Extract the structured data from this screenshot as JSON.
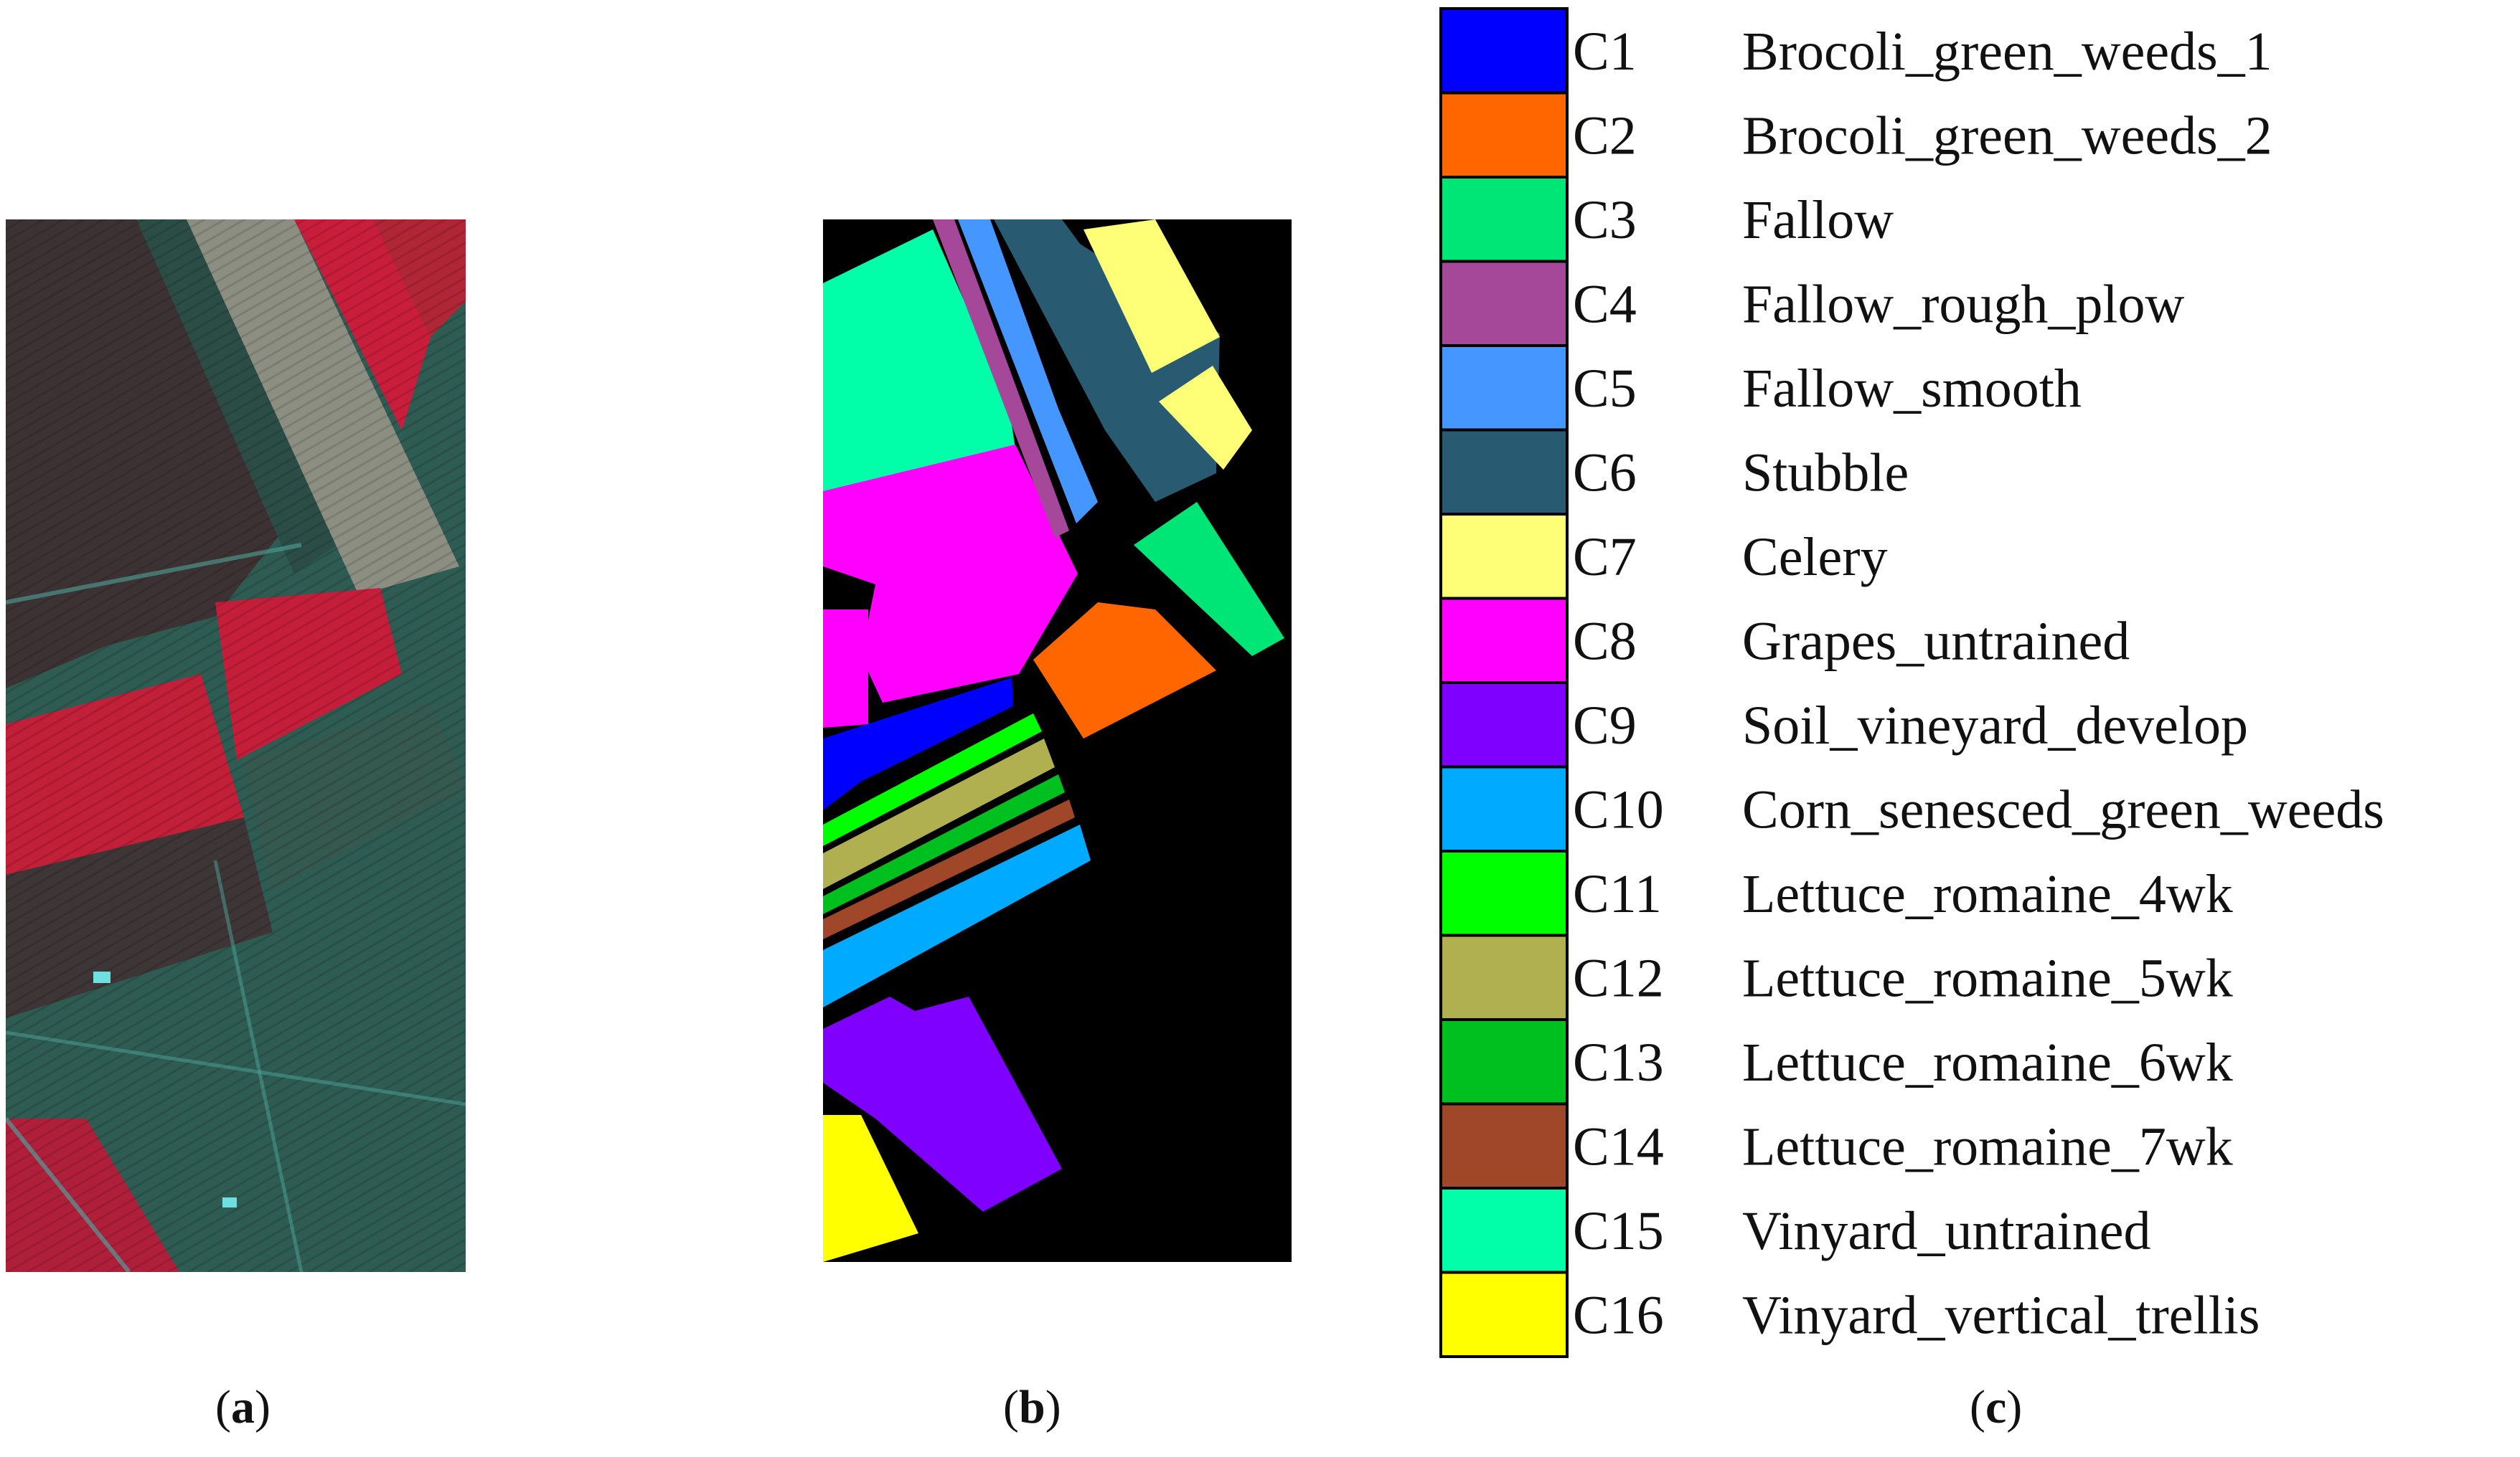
{
  "figure": {
    "panel_labels": [
      {
        "open": "(",
        "letter": "a",
        "close": ")"
      },
      {
        "open": "(",
        "letter": "b",
        "close": ")"
      },
      {
        "open": "(",
        "letter": "c",
        "close": ")"
      }
    ]
  },
  "panel_a": {
    "colors": {
      "field_dark": "#3c3234",
      "field_red": "#c41e3a",
      "field_teal": "#2f5a4f",
      "field_grey": "#8a8c80",
      "background": "#2e5b52"
    }
  },
  "panel_b": {
    "background": "#000000"
  },
  "legend": {
    "classes": [
      {
        "code": "C1",
        "name": "Brocoli_green_weeds_1",
        "color": "#0000ff"
      },
      {
        "code": "C2",
        "name": "Brocoli_green_weeds_2",
        "color": "#ff6600"
      },
      {
        "code": "C3",
        "name": "Fallow",
        "color": "#00e676"
      },
      {
        "code": "C4",
        "name": "Fallow_rough_plow",
        "color": "#a64899"
      },
      {
        "code": "C5",
        "name": "Fallow_smooth",
        "color": "#4596ff"
      },
      {
        "code": "C6",
        "name": "Stubble",
        "color": "#285b72"
      },
      {
        "code": "C7",
        "name": "Celery",
        "color": "#ffff77"
      },
      {
        "code": "C8",
        "name": "Grapes_untrained",
        "color": "#ff00ff"
      },
      {
        "code": "C9",
        "name": "Soil_vineyard_develop",
        "color": "#7f00ff"
      },
      {
        "code": "C10",
        "name": "Corn_senesced_green_weeds",
        "color": "#00aaff"
      },
      {
        "code": "C11",
        "name": "Lettuce_romaine_4wk",
        "color": "#00ff00"
      },
      {
        "code": "C12",
        "name": "Lettuce_romaine_5wk",
        "color": "#b0b050"
      },
      {
        "code": "C13",
        "name": "Lettuce_romaine_6wk",
        "color": "#00c020"
      },
      {
        "code": "C14",
        "name": "Lettuce_romaine_7wk",
        "color": "#a0472a"
      },
      {
        "code": "C15",
        "name": "Vinyard_untrained",
        "color": "#00ffa8"
      },
      {
        "code": "C16",
        "name": "Vinyard_vertical_trellis",
        "color": "#ffff00"
      }
    ]
  }
}
